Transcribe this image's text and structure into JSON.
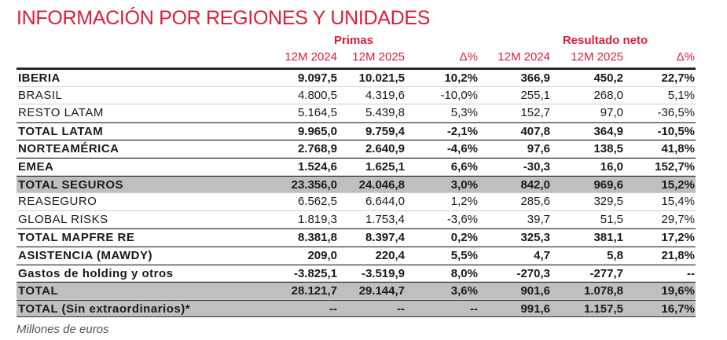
{
  "title": "INFORMACIÓN POR REGIONES Y UNIDADES",
  "groups": {
    "primas": "Primas",
    "resultado": "Resultado neto"
  },
  "columns": [
    "12M 2024",
    "12M 2025",
    "Δ%",
    "12M 2024",
    "12M 2025",
    "Δ%"
  ],
  "rows": [
    {
      "label": "IBERIA",
      "values": [
        "9.097,5",
        "10.021,5",
        "10,2%",
        "366,9",
        "450,2",
        "22,7%"
      ]
    },
    {
      "label": "BRASIL",
      "values": [
        "4.800,5",
        "4.319,6",
        "-10,0%",
        "255,1",
        "268,0",
        "5,1%"
      ]
    },
    {
      "label": "RESTO LATAM",
      "values": [
        "5.164,5",
        "5.439,8",
        "5,3%",
        "152,7",
        "97,0",
        "-36,5%"
      ]
    },
    {
      "label": "TOTAL LATAM",
      "values": [
        "9.965,0",
        "9.759,4",
        "-2,1%",
        "407,8",
        "364,9",
        "-10,5%"
      ]
    },
    {
      "label": "NORTEAMÉRICA",
      "values": [
        "2.768,9",
        "2.640,9",
        "-4,6%",
        "97,6",
        "138,5",
        "41,8%"
      ]
    },
    {
      "label": "EMEA",
      "values": [
        "1.524,6",
        "1.625,1",
        "6,6%",
        "-30,3",
        "16,0",
        "152,7%"
      ]
    },
    {
      "label": "TOTAL SEGUROS",
      "values": [
        "23.356,0",
        "24.046,8",
        "3,0%",
        "842,0",
        "969,6",
        "15,2%"
      ]
    },
    {
      "label": "REASEGURO",
      "values": [
        "6.562,5",
        "6.644,0",
        "1,2%",
        "285,6",
        "329,5",
        "15,4%"
      ]
    },
    {
      "label": "GLOBAL RISKS",
      "values": [
        "1.819,3",
        "1.753,4",
        "-3,6%",
        "39,7",
        "51,5",
        "29,7%"
      ]
    },
    {
      "label": "TOTAL MAPFRE RE",
      "values": [
        "8.381,8",
        "8.397,4",
        "0,2%",
        "325,3",
        "381,1",
        "17,2%"
      ]
    },
    {
      "label": "ASISTENCIA (MAWDY)",
      "values": [
        "209,0",
        "220,4",
        "5,5%",
        "4,7",
        "5,8",
        "21,8%"
      ]
    },
    {
      "label": "Gastos de holding y otros",
      "values": [
        "-3.825,1",
        "-3.519,9",
        "8,0%",
        "-270,3",
        "-277,7",
        "--"
      ]
    },
    {
      "label": "TOTAL",
      "values": [
        "28.121,7",
        "29.144,7",
        "3,6%",
        "901,6",
        "1.078,8",
        "19,6%"
      ]
    },
    {
      "label": "TOTAL (Sin extraordinarios)*",
      "values": [
        "--",
        "--",
        "--",
        "991,6",
        "1.157,5",
        "16,7%"
      ]
    }
  ],
  "footer": "Millones de euros"
}
